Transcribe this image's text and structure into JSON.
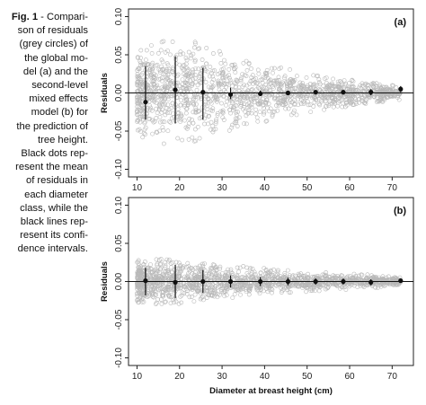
{
  "caption": {
    "fig_label": "Fig. 1",
    "lines": [
      " - Compari-",
      "son of residuals",
      "(grey circles) of",
      "the global mo-",
      "del (a) and the",
      "second-level",
      "mixed effects",
      "model (b) for",
      "the prediction of",
      "tree height.",
      "Black dots rep-",
      "resent the mean",
      "of residuals in",
      "each diameter",
      "class, while the",
      "black lines rep-",
      "resent its confi-",
      "dence intervals."
    ]
  },
  "colors": {
    "residual_circles": "#b8b8b8",
    "mean_dots": "#111111",
    "ci_lines": "#111111",
    "zero_line": "#111111"
  },
  "chart_data": [
    {
      "type": "scatter",
      "panel_label": "(a)",
      "xlabel": "",
      "ylabel": "Residuals",
      "xlim": [
        8,
        75
      ],
      "ylim": [
        -0.11,
        0.11
      ],
      "xticks": [
        10,
        20,
        30,
        40,
        50,
        60,
        70
      ],
      "yticks": [
        -0.1,
        -0.05,
        0.0,
        0.05,
        0.1
      ],
      "ytick_labels": [
        "-0.10",
        "-0.05",
        "0.00",
        "0.05",
        "0.10"
      ],
      "reference_line_y": 0,
      "class_means": {
        "x": [
          12,
          19,
          25.5,
          32,
          39,
          45.5,
          52,
          58.5,
          65,
          72
        ],
        "mean": [
          -0.012,
          0.004,
          0.001,
          -0.002,
          -0.001,
          0.0,
          0.001,
          0.001,
          0.001,
          0.005
        ],
        "ci_low": [
          -0.035,
          -0.04,
          -0.035,
          -0.008,
          -0.004,
          -0.003,
          -0.002,
          -0.002,
          -0.003,
          0.001
        ],
        "ci_high": [
          0.035,
          0.048,
          0.033,
          0.007,
          0.003,
          0.003,
          0.003,
          0.003,
          0.005,
          0.009
        ]
      },
      "residual_cloud": {
        "x_range": [
          10,
          72
        ],
        "spread_by_x": [
          [
            10,
            0.055
          ],
          [
            18,
            0.075
          ],
          [
            25,
            0.065
          ],
          [
            35,
            0.045
          ],
          [
            45,
            0.032
          ],
          [
            55,
            0.022
          ],
          [
            65,
            0.014
          ],
          [
            72,
            0.01
          ]
        ],
        "approx_points": 1500
      }
    },
    {
      "type": "scatter",
      "panel_label": "(b)",
      "xlabel": "Diameter at breast height (cm)",
      "ylabel": "Residuals",
      "xlim": [
        8,
        75
      ],
      "ylim": [
        -0.11,
        0.11
      ],
      "xticks": [
        10,
        20,
        30,
        40,
        50,
        60,
        70
      ],
      "yticks": [
        -0.1,
        -0.05,
        0.0,
        0.05,
        0.1
      ],
      "ytick_labels": [
        "-0.10",
        "-0.05",
        "0.00",
        "0.05",
        "0.10"
      ],
      "reference_line_y": 0,
      "class_means": {
        "x": [
          12,
          19,
          25.5,
          32,
          39,
          45.5,
          52,
          58.5,
          65,
          72
        ],
        "mean": [
          0.001,
          -0.001,
          0.0,
          0.0,
          0.0,
          0.0,
          0.0,
          0.0,
          -0.001,
          0.001
        ],
        "ci_low": [
          -0.018,
          -0.022,
          -0.015,
          -0.008,
          -0.006,
          -0.005,
          -0.004,
          -0.004,
          -0.005,
          -0.001
        ],
        "ci_high": [
          0.018,
          0.022,
          0.015,
          0.008,
          0.006,
          0.005,
          0.004,
          0.004,
          0.003,
          0.003
        ]
      },
      "residual_cloud": {
        "x_range": [
          10,
          72
        ],
        "spread_by_x": [
          [
            10,
            0.03
          ],
          [
            18,
            0.03
          ],
          [
            25,
            0.027
          ],
          [
            35,
            0.02
          ],
          [
            45,
            0.015
          ],
          [
            55,
            0.012
          ],
          [
            65,
            0.009
          ],
          [
            72,
            0.006
          ]
        ],
        "approx_points": 1500
      }
    }
  ]
}
